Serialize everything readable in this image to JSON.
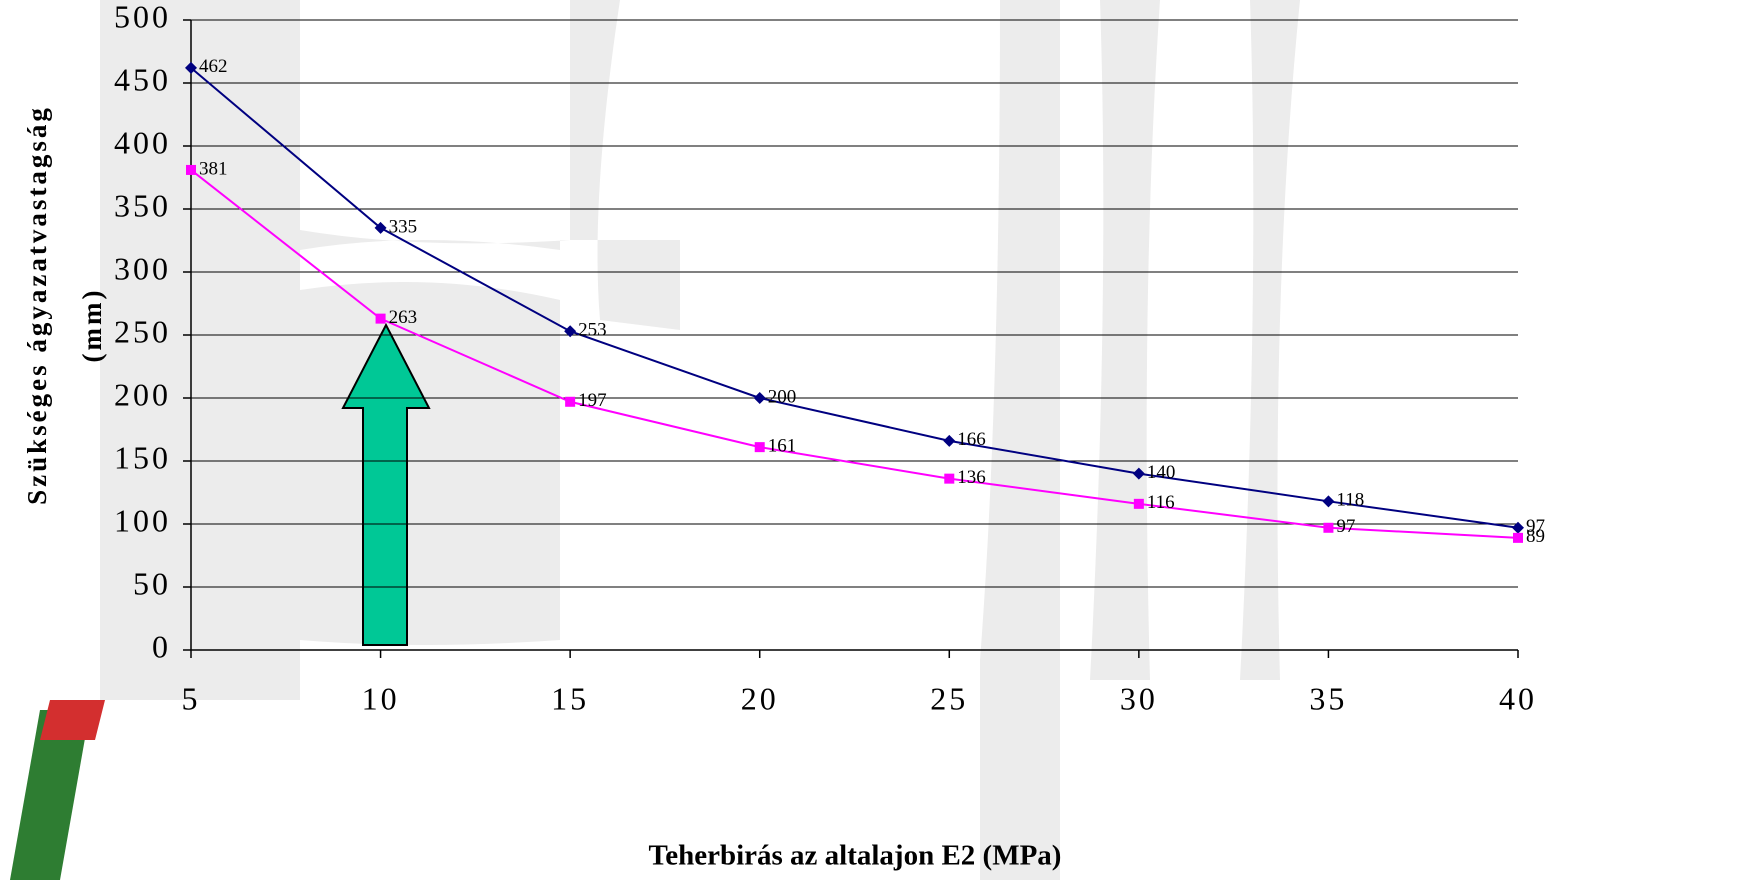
{
  "chart_data": {
    "type": "line",
    "ylabel": [
      "Szükséges ágyazatvastagság",
      "(mm)"
    ],
    "xlabel": "Teherbirás az altalajon E2 (MPa)",
    "x": [
      5,
      10,
      15,
      20,
      25,
      30,
      35,
      40
    ],
    "series": [
      {
        "color": "#000080",
        "marker": "diamond",
        "values": [
          462,
          335,
          253,
          200,
          166,
          140,
          118,
          97
        ]
      },
      {
        "color": "#ff00ff",
        "marker": "square",
        "values": [
          381,
          263,
          197,
          161,
          136,
          116,
          97,
          89
        ]
      }
    ],
    "xlim": [
      5,
      40
    ],
    "xticks": [
      5,
      10,
      15,
      20,
      25,
      30,
      35,
      40
    ],
    "ylim": [
      0,
      500
    ],
    "yticks": [
      0,
      50,
      100,
      150,
      200,
      250,
      300,
      350,
      400,
      450,
      500
    ],
    "grid": true
  }
}
